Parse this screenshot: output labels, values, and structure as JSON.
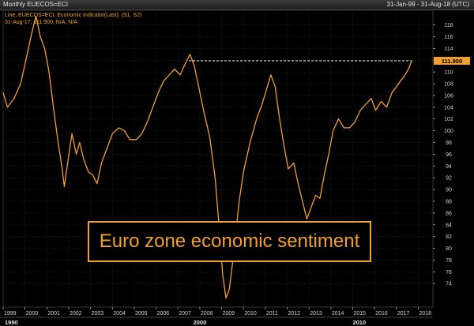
{
  "header": {
    "title": "Monthly EUECOS=ECI",
    "range": "31-Jan-99 - 31-Aug-18 (UTC)"
  },
  "legend": {
    "line1": "Line, EUECOS=ECI, Economic Indicator(Last), (S1, S2)",
    "line2": "31-Aug-17, 111.900, N/A, N/A"
  },
  "annotation": "Euro zone economic sentiment",
  "colors": {
    "series": "#f0a030",
    "background": "#000000",
    "grid": "#2b2b2b",
    "label_box": "#f0a030"
  },
  "chart_data": {
    "type": "line",
    "ylim": [
      70,
      120
    ],
    "y_ticks": [
      74,
      76,
      78,
      80,
      82,
      84,
      86,
      88,
      90,
      92,
      94,
      96,
      98,
      100,
      102,
      104,
      106,
      108,
      110,
      112,
      114,
      116,
      118
    ],
    "x_ticks": [
      "1999",
      "2000",
      "2001",
      "2002",
      "2003",
      "2004",
      "2005",
      "2006",
      "2007",
      "2008",
      "2009",
      "2010",
      "2011",
      "2012",
      "2013",
      "2014",
      "2015",
      "2016",
      "2017",
      "2018"
    ],
    "x_major": [
      "1990",
      "2000",
      "2010"
    ],
    "last_value_label": "111.900",
    "reference_line": {
      "value": 111.9,
      "style": "dashed",
      "from": 2007.5,
      "to": 2017.7
    },
    "series": [
      {
        "points": [
          [
            1999.0,
            106.5
          ],
          [
            1999.2,
            104.0
          ],
          [
            1999.5,
            105.5
          ],
          [
            1999.8,
            108.0
          ],
          [
            2000.1,
            113.0
          ],
          [
            2000.3,
            116.5
          ],
          [
            2000.5,
            119.5
          ],
          [
            2000.7,
            116.0
          ],
          [
            2000.9,
            114.0
          ],
          [
            2001.1,
            110.0
          ],
          [
            2001.3,
            104.0
          ],
          [
            2001.5,
            98.5
          ],
          [
            2001.7,
            93.5
          ],
          [
            2001.8,
            90.5
          ],
          [
            2001.95,
            94.5
          ],
          [
            2002.15,
            99.5
          ],
          [
            2002.35,
            96.0
          ],
          [
            2002.5,
            98.0
          ],
          [
            2002.7,
            95.0
          ],
          [
            2002.9,
            93.0
          ],
          [
            2003.1,
            92.5
          ],
          [
            2003.3,
            91.0
          ],
          [
            2003.5,
            94.5
          ],
          [
            2003.75,
            97.0
          ],
          [
            2004.0,
            99.5
          ],
          [
            2004.3,
            100.5
          ],
          [
            2004.55,
            100.0
          ],
          [
            2004.8,
            98.5
          ],
          [
            2005.1,
            98.5
          ],
          [
            2005.35,
            99.5
          ],
          [
            2005.6,
            101.5
          ],
          [
            2005.85,
            104.0
          ],
          [
            2006.1,
            106.5
          ],
          [
            2006.35,
            108.5
          ],
          [
            2006.6,
            109.5
          ],
          [
            2006.85,
            110.5
          ],
          [
            2007.1,
            109.5
          ],
          [
            2007.35,
            111.5
          ],
          [
            2007.55,
            113.0
          ],
          [
            2007.75,
            111.0
          ],
          [
            2007.95,
            107.5
          ],
          [
            2008.2,
            103.0
          ],
          [
            2008.45,
            99.0
          ],
          [
            2008.7,
            92.0
          ],
          [
            2008.9,
            83.0
          ],
          [
            2009.05,
            75.5
          ],
          [
            2009.2,
            71.5
          ],
          [
            2009.35,
            73.0
          ],
          [
            2009.55,
            79.0
          ],
          [
            2009.8,
            88.0
          ],
          [
            2010.0,
            93.0
          ],
          [
            2010.3,
            98.0
          ],
          [
            2010.6,
            102.0
          ],
          [
            2010.85,
            104.5
          ],
          [
            2011.05,
            107.0
          ],
          [
            2011.25,
            109.5
          ],
          [
            2011.45,
            107.5
          ],
          [
            2011.65,
            102.0
          ],
          [
            2011.85,
            97.5
          ],
          [
            2012.05,
            93.5
          ],
          [
            2012.3,
            94.5
          ],
          [
            2012.5,
            91.0
          ],
          [
            2012.7,
            88.0
          ],
          [
            2012.9,
            85.0
          ],
          [
            2013.05,
            86.5
          ],
          [
            2013.3,
            89.0
          ],
          [
            2013.5,
            88.5
          ],
          [
            2013.7,
            92.5
          ],
          [
            2013.9,
            96.0
          ],
          [
            2014.1,
            100.0
          ],
          [
            2014.35,
            102.0
          ],
          [
            2014.6,
            100.5
          ],
          [
            2014.85,
            100.5
          ],
          [
            2015.1,
            101.5
          ],
          [
            2015.35,
            103.5
          ],
          [
            2015.6,
            104.5
          ],
          [
            2015.85,
            105.5
          ],
          [
            2016.05,
            103.5
          ],
          [
            2016.3,
            105.0
          ],
          [
            2016.55,
            104.0
          ],
          [
            2016.8,
            106.5
          ],
          [
            2017.0,
            107.5
          ],
          [
            2017.2,
            108.5
          ],
          [
            2017.4,
            109.5
          ],
          [
            2017.55,
            110.5
          ],
          [
            2017.7,
            111.9
          ]
        ]
      }
    ]
  }
}
